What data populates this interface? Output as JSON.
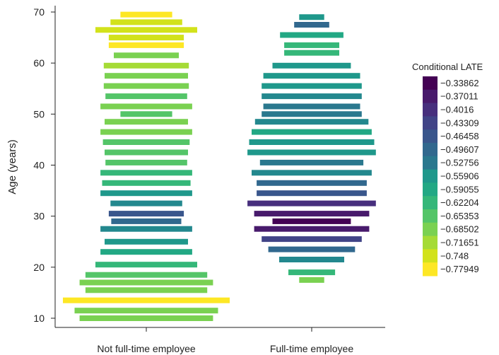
{
  "chart_data": {
    "type": "bar",
    "subtype": "violin-like horizontal bars (centered) by age",
    "ylabel": "Age (years)",
    "xlabel": "",
    "ylim": [
      8,
      72
    ],
    "yticks": [
      10,
      20,
      30,
      40,
      50,
      60,
      70
    ],
    "categories": [
      "Not full-time employee",
      "Full-time employee"
    ],
    "legend": {
      "title": "Conditional LATE",
      "position": "right",
      "values": [
        -0.33862,
        -0.37011,
        -0.4016,
        -0.43309,
        -0.46458,
        -0.49607,
        -0.52756,
        -0.55906,
        -0.59055,
        -0.62204,
        -0.65353,
        -0.68502,
        -0.71651,
        -0.748,
        -0.77949
      ],
      "labels": [
        "−0.33862",
        "−0.37011",
        "−0.4016",
        "−0.43309",
        "−0.46458",
        "−0.49607",
        "−0.52756",
        "−0.55906",
        "−0.59055",
        "−0.62204",
        "−0.65353",
        "−0.68502",
        "−0.71651",
        "−0.748",
        "−0.77949"
      ]
    },
    "colors": [
      "#440154",
      "#481a6c",
      "#472f7d",
      "#414487",
      "#39568c",
      "#31688e",
      "#2a788e",
      "#23888e",
      "#1f988b",
      "#22a884",
      "#35b779",
      "#54c568",
      "#7ad151",
      "#a5db36",
      "#d2e21b",
      "#fde725"
    ],
    "series": [
      {
        "category": "Not full-time employee",
        "bars": [
          {
            "age": 10,
            "width": 0.8,
            "late": -0.69
          },
          {
            "age": 11.5,
            "width": 0.86,
            "late": -0.7
          },
          {
            "age": 13.5,
            "width": 1.0,
            "late": -0.77
          },
          {
            "age": 15.5,
            "width": 0.73,
            "late": -0.69
          },
          {
            "age": 17,
            "width": 0.8,
            "late": -0.68
          },
          {
            "age": 18.5,
            "width": 0.73,
            "late": -0.67
          },
          {
            "age": 20.5,
            "width": 0.61,
            "late": -0.64
          },
          {
            "age": 23,
            "width": 0.55,
            "late": -0.6
          },
          {
            "age": 25,
            "width": 0.5,
            "late": -0.56
          },
          {
            "age": 27.5,
            "width": 0.55,
            "late": -0.53
          },
          {
            "age": 29,
            "width": 0.42,
            "late": -0.5
          },
          {
            "age": 30.5,
            "width": 0.45,
            "late": -0.47
          },
          {
            "age": 32.5,
            "width": 0.43,
            "late": -0.55
          },
          {
            "age": 34.5,
            "width": 0.55,
            "late": -0.56
          },
          {
            "age": 36.5,
            "width": 0.53,
            "late": -0.63
          },
          {
            "age": 38.5,
            "width": 0.55,
            "late": -0.64
          },
          {
            "age": 40.5,
            "width": 0.49,
            "late": -0.66
          },
          {
            "age": 42.5,
            "width": 0.5,
            "late": -0.67
          },
          {
            "age": 44.5,
            "width": 0.52,
            "late": -0.67
          },
          {
            "age": 46.5,
            "width": 0.55,
            "late": -0.68
          },
          {
            "age": 48.5,
            "width": 0.5,
            "late": -0.68
          },
          {
            "age": 50,
            "width": 0.31,
            "late": -0.66
          },
          {
            "age": 51.5,
            "width": 0.55,
            "late": -0.68
          },
          {
            "age": 53.5,
            "width": 0.49,
            "late": -0.66
          },
          {
            "age": 55.5,
            "width": 0.51,
            "late": -0.68
          },
          {
            "age": 57.5,
            "width": 0.5,
            "late": -0.68
          },
          {
            "age": 59.5,
            "width": 0.51,
            "late": -0.73
          },
          {
            "age": 61.5,
            "width": 0.39,
            "late": -0.7
          },
          {
            "age": 63.5,
            "width": 0.45,
            "late": -0.77
          },
          {
            "age": 65,
            "width": 0.45,
            "late": -0.75
          },
          {
            "age": 66.5,
            "width": 0.61,
            "late": -0.75
          },
          {
            "age": 68,
            "width": 0.43,
            "late": -0.74
          },
          {
            "age": 69.5,
            "width": 0.31,
            "late": -0.77
          }
        ]
      },
      {
        "category": "Full-time employee",
        "bars": [
          {
            "age": 17.5,
            "width": 0.15,
            "late": -0.69
          },
          {
            "age": 19,
            "width": 0.28,
            "late": -0.64
          },
          {
            "age": 21.5,
            "width": 0.39,
            "late": -0.53
          },
          {
            "age": 23.5,
            "width": 0.52,
            "late": -0.49
          },
          {
            "age": 25.5,
            "width": 0.6,
            "late": -0.44
          },
          {
            "age": 27.5,
            "width": 0.69,
            "late": -0.37
          },
          {
            "age": 29,
            "width": 0.47,
            "late": -0.34
          },
          {
            "age": 30.5,
            "width": 0.69,
            "late": -0.37
          },
          {
            "age": 32.5,
            "width": 0.77,
            "late": -0.4
          },
          {
            "age": 34.5,
            "width": 0.66,
            "late": -0.47
          },
          {
            "age": 36.5,
            "width": 0.66,
            "late": -0.49
          },
          {
            "age": 38.5,
            "width": 0.72,
            "late": -0.55
          },
          {
            "age": 40.5,
            "width": 0.62,
            "late": -0.52
          },
          {
            "age": 42.5,
            "width": 0.77,
            "late": -0.56
          },
          {
            "age": 44.5,
            "width": 0.75,
            "late": -0.58
          },
          {
            "age": 46.5,
            "width": 0.72,
            "late": -0.59
          },
          {
            "age": 48.5,
            "width": 0.68,
            "late": -0.55
          },
          {
            "age": 50,
            "width": 0.6,
            "late": -0.52
          },
          {
            "age": 51.5,
            "width": 0.58,
            "late": -0.51
          },
          {
            "age": 53.5,
            "width": 0.6,
            "late": -0.53
          },
          {
            "age": 55.5,
            "width": 0.6,
            "late": -0.57
          },
          {
            "age": 57.5,
            "width": 0.58,
            "late": -0.57
          },
          {
            "age": 59.5,
            "width": 0.47,
            "late": -0.57
          },
          {
            "age": 62,
            "width": 0.33,
            "late": -0.64
          },
          {
            "age": 63.5,
            "width": 0.33,
            "late": -0.64
          },
          {
            "age": 65.5,
            "width": 0.38,
            "late": -0.6
          },
          {
            "age": 67.5,
            "width": 0.21,
            "late": -0.49
          },
          {
            "age": 69,
            "width": 0.15,
            "late": -0.56
          }
        ]
      }
    ]
  }
}
